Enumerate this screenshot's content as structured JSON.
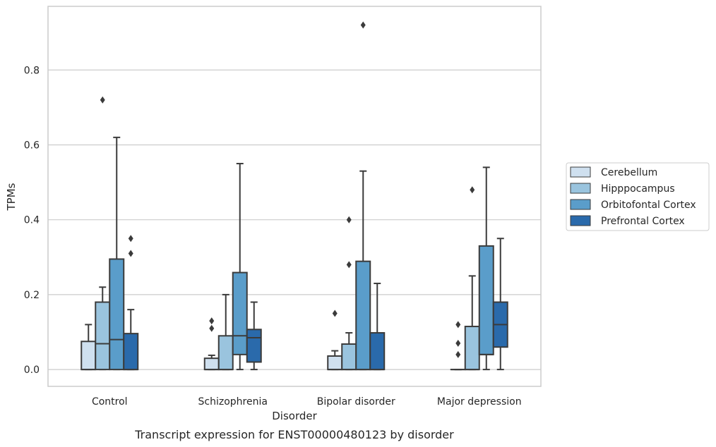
{
  "chart_data": {
    "type": "box",
    "caption": "Transcript expression for ENST00000480123 by disorder",
    "xlabel": "Disorder",
    "ylabel": "TPMs",
    "ylim": [
      -0.045,
      0.97
    ],
    "yticks": [
      0.0,
      0.2,
      0.4,
      0.6,
      0.8
    ],
    "ytick_labels": [
      "0.0",
      "0.2",
      "0.4",
      "0.6",
      "0.8"
    ],
    "grid": "horizontal",
    "legend_position": "right",
    "categories": [
      "Control",
      "Schizophrenia",
      "Bipolar disorder",
      "Major depression"
    ],
    "series": [
      {
        "name": "Cerebellum",
        "color": "#cfe0ef",
        "boxes": [
          {
            "whisker_low": 0.0,
            "q1": 0.0,
            "median": 0.0,
            "q3": 0.075,
            "whisker_high": 0.12,
            "outliers": []
          },
          {
            "whisker_low": 0.0,
            "q1": 0.0,
            "median": 0.0,
            "q3": 0.03,
            "whisker_high": 0.038,
            "outliers": [
              0.11,
              0.13
            ]
          },
          {
            "whisker_low": 0.0,
            "q1": 0.0,
            "median": 0.0,
            "q3": 0.036,
            "whisker_high": 0.05,
            "outliers": [
              0.15
            ]
          },
          {
            "whisker_low": 0.0,
            "q1": 0.0,
            "median": 0.0,
            "q3": 0.0,
            "whisker_high": 0.0,
            "outliers": [
              0.04,
              0.07,
              0.12
            ]
          }
        ]
      },
      {
        "name": "Hipppocampus",
        "color": "#9ac4de",
        "boxes": [
          {
            "whisker_low": 0.0,
            "q1": 0.0,
            "median": 0.069,
            "q3": 0.18,
            "whisker_high": 0.22,
            "outliers": [
              0.72
            ]
          },
          {
            "whisker_low": 0.0,
            "q1": 0.0,
            "median": 0.0,
            "q3": 0.09,
            "whisker_high": 0.2,
            "outliers": []
          },
          {
            "whisker_low": 0.0,
            "q1": 0.0,
            "median": 0.0,
            "q3": 0.068,
            "whisker_high": 0.098,
            "outliers": [
              0.28,
              0.4
            ]
          },
          {
            "whisker_low": 0.0,
            "q1": 0.0,
            "median": 0.0,
            "q3": 0.115,
            "whisker_high": 0.25,
            "outliers": [
              0.48
            ]
          }
        ]
      },
      {
        "name": "Orbitofontal Cortex",
        "color": "#5a9dca",
        "boxes": [
          {
            "whisker_low": 0.0,
            "q1": 0.0,
            "median": 0.08,
            "q3": 0.295,
            "whisker_high": 0.62,
            "outliers": []
          },
          {
            "whisker_low": 0.0,
            "q1": 0.04,
            "median": 0.09,
            "q3": 0.259,
            "whisker_high": 0.55,
            "outliers": []
          },
          {
            "whisker_low": 0.0,
            "q1": 0.0,
            "median": 0.0,
            "q3": 0.289,
            "whisker_high": 0.53,
            "outliers": [
              0.92
            ]
          },
          {
            "whisker_low": 0.0,
            "q1": 0.04,
            "median": 0.04,
            "q3": 0.33,
            "whisker_high": 0.54,
            "outliers": []
          }
        ]
      },
      {
        "name": "Prefrontal Cortex",
        "color": "#2a6aab",
        "boxes": [
          {
            "whisker_low": 0.0,
            "q1": 0.0,
            "median": 0.0,
            "q3": 0.096,
            "whisker_high": 0.16,
            "outliers": [
              0.31,
              0.35
            ]
          },
          {
            "whisker_low": 0.0,
            "q1": 0.02,
            "median": 0.085,
            "q3": 0.107,
            "whisker_high": 0.18,
            "outliers": []
          },
          {
            "whisker_low": 0.0,
            "q1": 0.0,
            "median": 0.0,
            "q3": 0.098,
            "whisker_high": 0.23,
            "outliers": []
          },
          {
            "whisker_low": 0.0,
            "q1": 0.06,
            "median": 0.12,
            "q3": 0.18,
            "whisker_high": 0.35,
            "outliers": []
          }
        ]
      }
    ]
  }
}
